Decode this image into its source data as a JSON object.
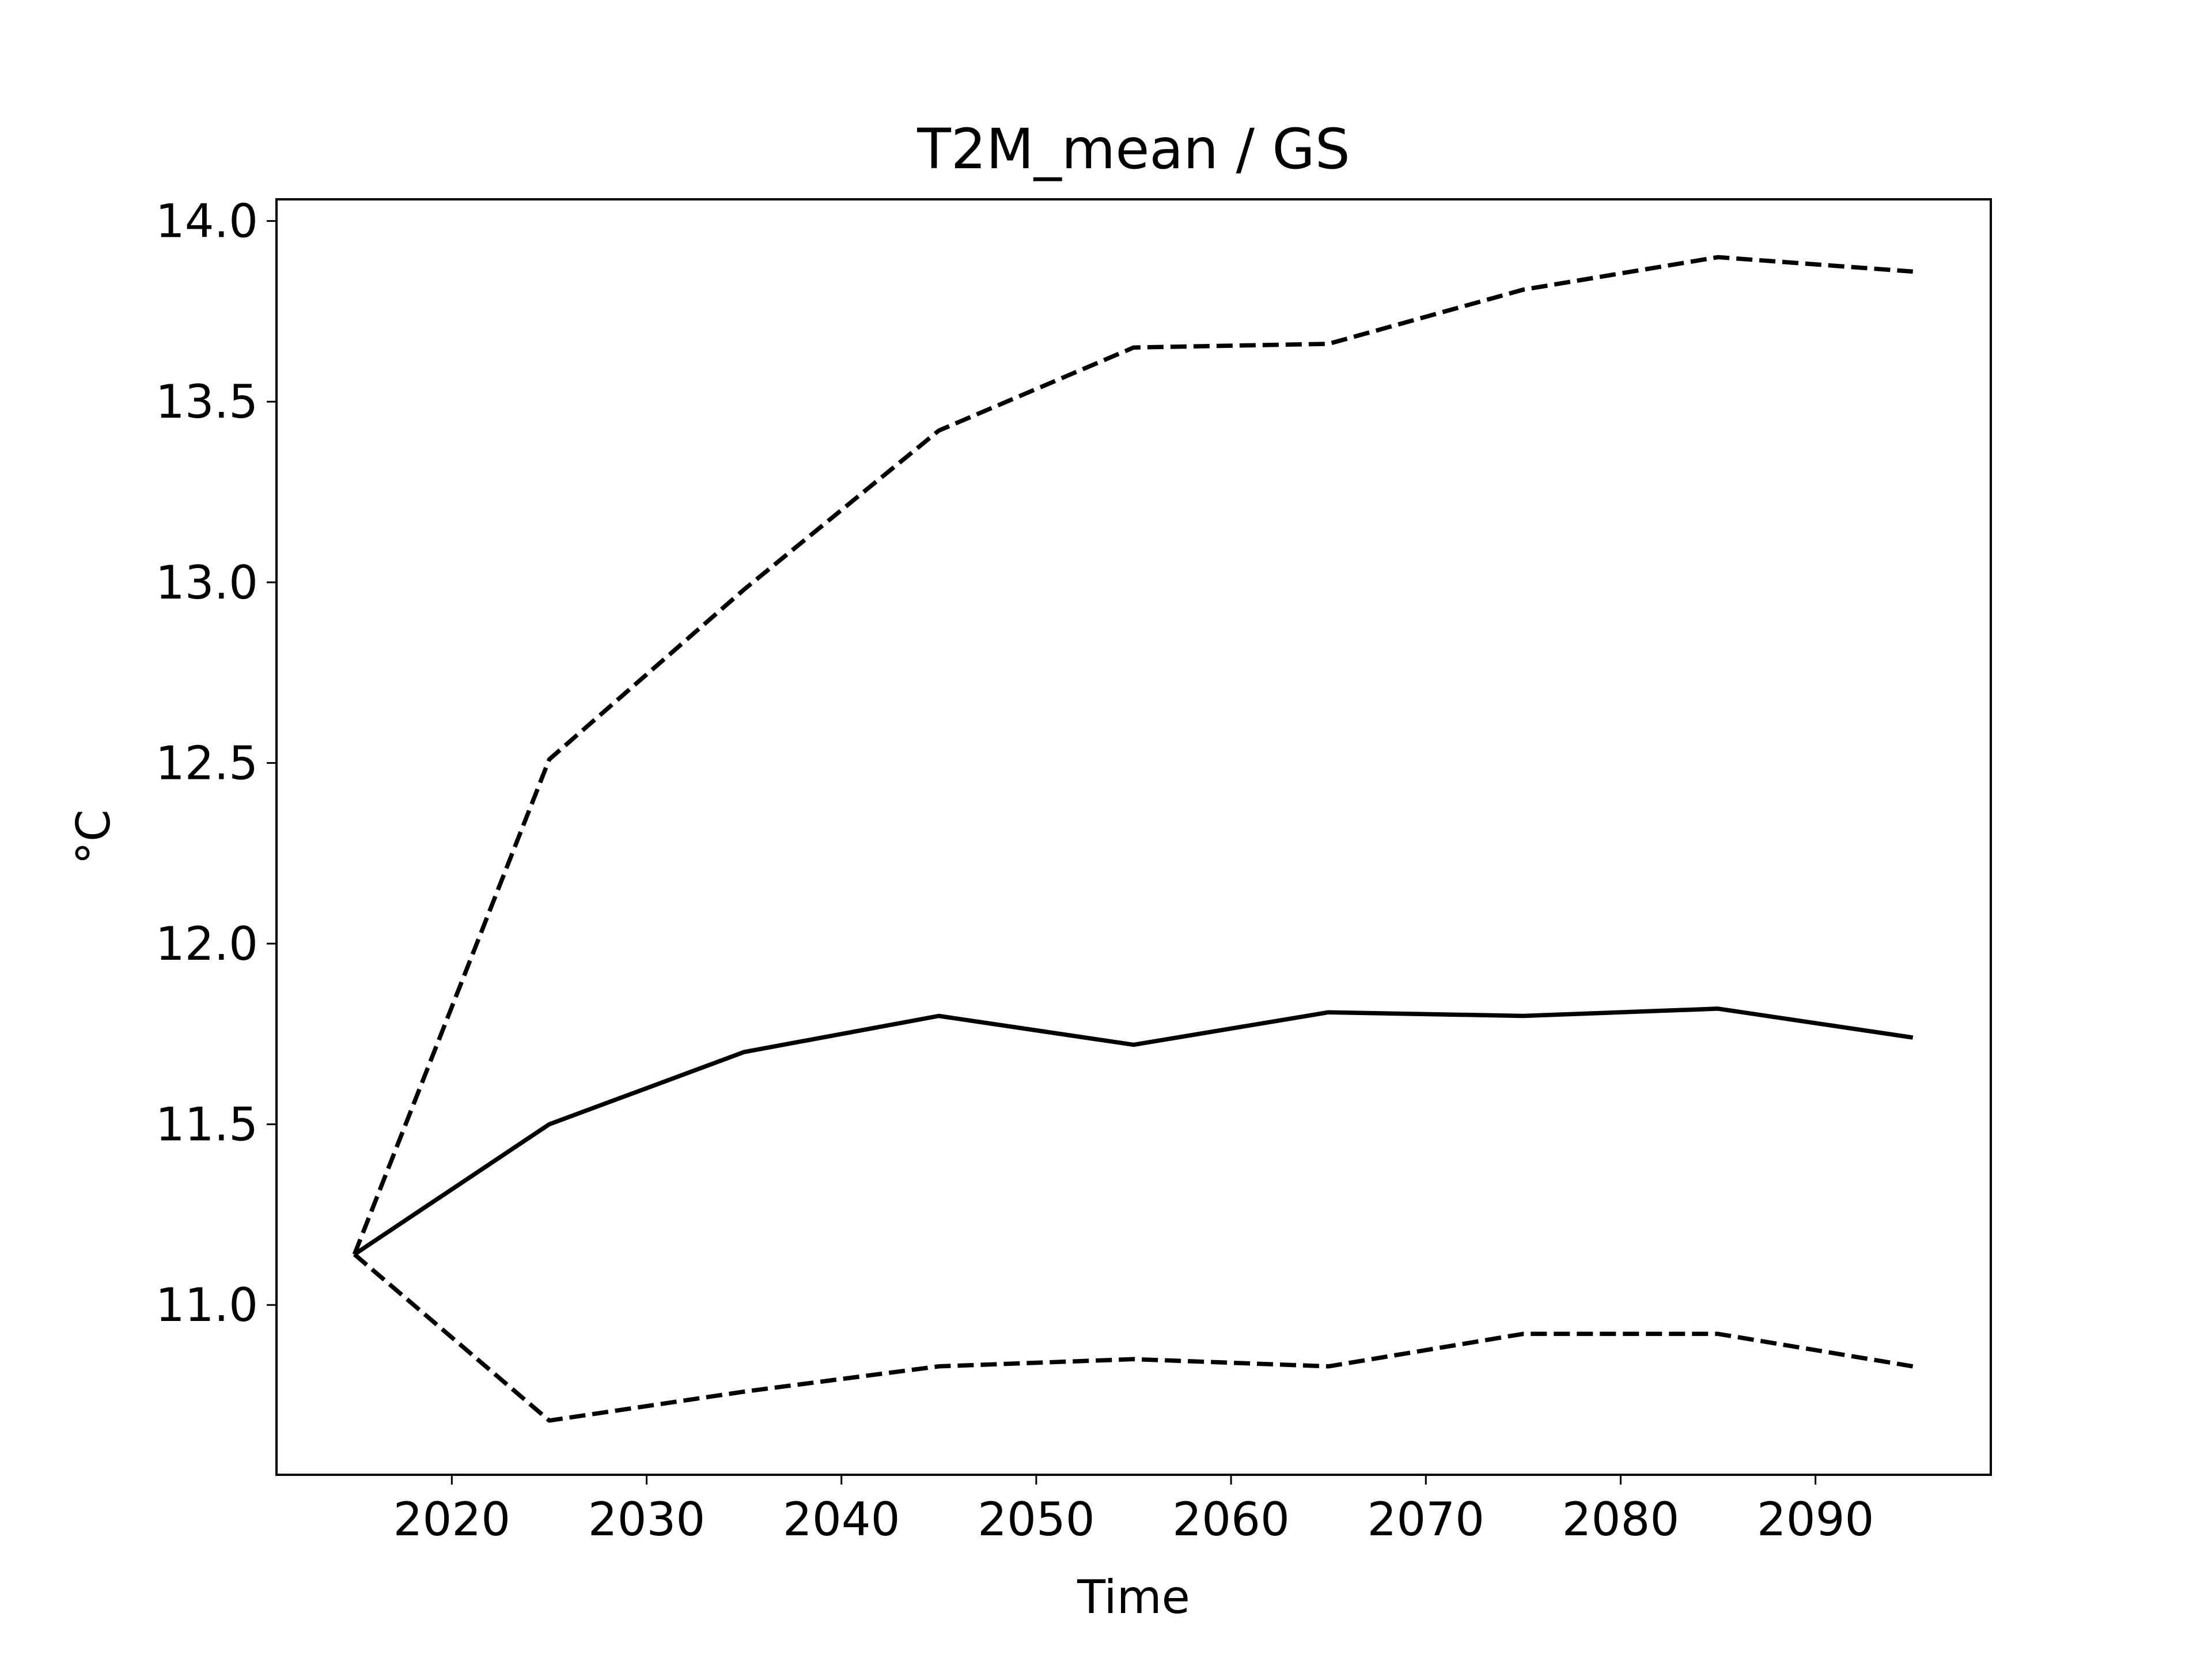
{
  "chart_data": {
    "type": "line",
    "title": "T2M_mean / GS",
    "xlabel": "Time",
    "ylabel": "°C",
    "xlim": [
      2011,
      2099
    ],
    "ylim": [
      10.53,
      14.06
    ],
    "xticks": [
      2020,
      2030,
      2040,
      2050,
      2060,
      2070,
      2080,
      2090
    ],
    "xtick_labels": [
      "2020",
      "2030",
      "2040",
      "2050",
      "2060",
      "2070",
      "2080",
      "2090"
    ],
    "yticks": [
      11.0,
      11.5,
      12.0,
      12.5,
      13.0,
      13.5,
      14.0
    ],
    "ytick_labels": [
      "11.0",
      "11.5",
      "12.0",
      "12.5",
      "13.0",
      "13.5",
      "14.0"
    ],
    "grid": false,
    "legend": false,
    "x": [
      2015,
      2025,
      2035,
      2045,
      2055,
      2065,
      2075,
      2085,
      2095
    ],
    "series": [
      {
        "style": "solid",
        "color": "#000000",
        "values": [
          11.14,
          11.5,
          11.7,
          11.8,
          11.72,
          11.81,
          11.8,
          11.82,
          11.74
        ]
      },
      {
        "style": "dashed",
        "color": "#000000",
        "values": [
          11.14,
          12.51,
          12.98,
          13.42,
          13.65,
          13.66,
          13.81,
          13.9,
          13.86
        ]
      },
      {
        "style": "dashed",
        "color": "#000000",
        "values": [
          11.14,
          10.68,
          10.76,
          10.83,
          10.85,
          10.83,
          10.92,
          10.92,
          10.83
        ]
      }
    ]
  }
}
